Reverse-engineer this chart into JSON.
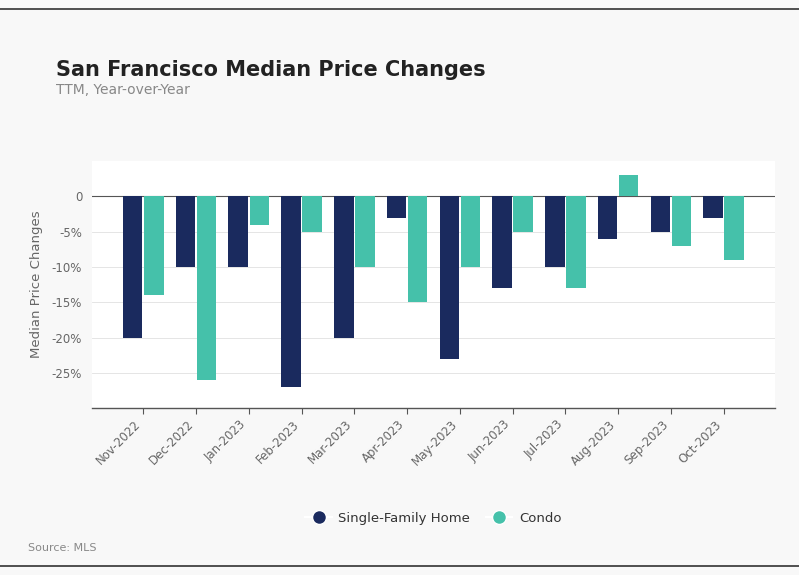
{
  "title": "San Francisco Median Price Changes",
  "subtitle": "TTM, Year-over-Year",
  "ylabel": "Median Price Changes",
  "source": "Source: MLS",
  "categories": [
    "Nov-2022",
    "Dec-2022",
    "Jan-2023",
    "Feb-2023",
    "Mar-2023",
    "Apr-2023",
    "May-2023",
    "Jun-2023",
    "Jul-2023",
    "Aug-2023",
    "Sep-2023",
    "Oct-2023"
  ],
  "sfh_values": [
    -20.0,
    -10.0,
    -10.0,
    -27.0,
    -20.0,
    -3.0,
    -23.0,
    -13.0,
    -10.0,
    -6.0,
    -5.0,
    -3.0
  ],
  "condo_values": [
    -14.0,
    -26.0,
    -4.0,
    -5.0,
    -10.0,
    -15.0,
    -10.0,
    -5.0,
    -13.0,
    3.0,
    -7.0,
    -9.0
  ],
  "sfh_color": "#1a2a5e",
  "condo_color": "#45c1aa",
  "background_color": "#f8f8f8",
  "plot_bg_color": "#ffffff",
  "border_color": "#cccccc",
  "ylim": [
    -30,
    5
  ],
  "yticks": [
    0,
    -5,
    -10,
    -15,
    -20,
    -25
  ],
  "title_fontsize": 15,
  "subtitle_fontsize": 10,
  "label_fontsize": 9.5,
  "tick_fontsize": 8.5,
  "legend_labels": [
    "Single-Family Home",
    "Condo"
  ]
}
